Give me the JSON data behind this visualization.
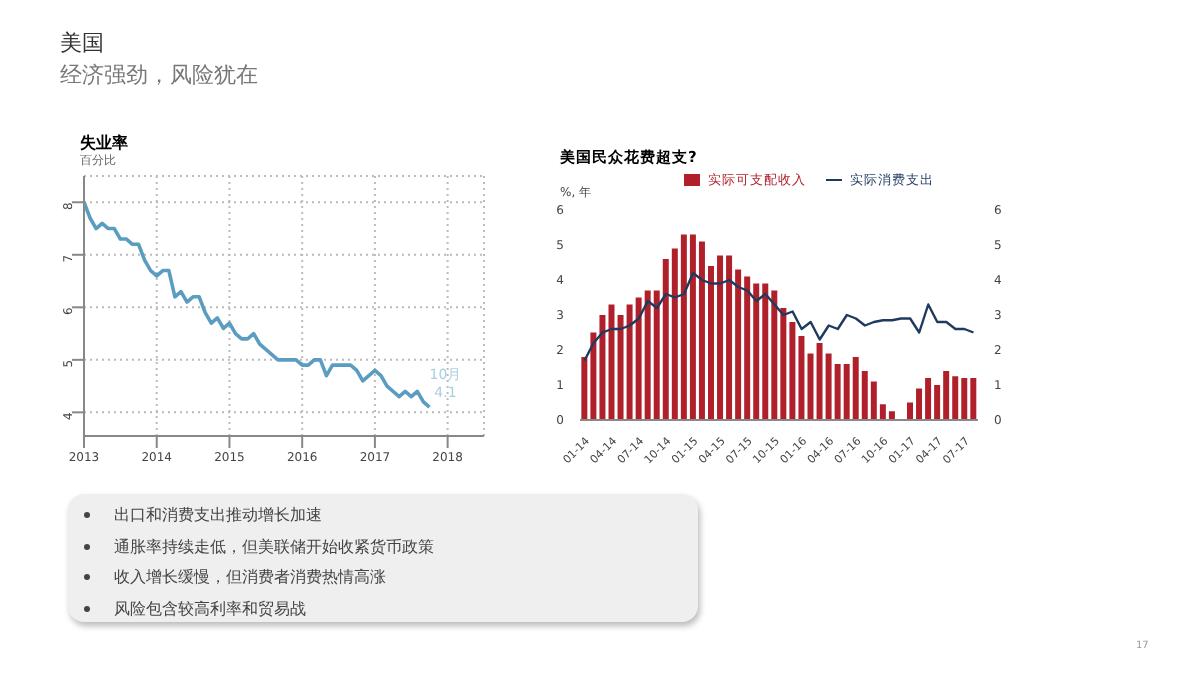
{
  "chart_data": [
    {
      "type": "other",
      "title": "美国",
      "subtitle": "经济强劲，风险犹在",
      "annotations": [
        "出口和消费支出推动增长加速",
        "通胀率持续走低，但美联储开始收紧货币政策",
        "收入增长缓慢，但消费者消费热情高涨",
        "风险包含较高利率和贸易战",
        "17"
      ]
    },
    {
      "type": "line",
      "title": "失业率",
      "ylabel": "百分比",
      "grid": true,
      "marker": "none",
      "x": [
        "2013-01",
        "2013-02",
        "2013-03",
        "2013-04",
        "2013-05",
        "2013-06",
        "2013-07",
        "2013-08",
        "2013-09",
        "2013-10",
        "2013-11",
        "2013-12",
        "2014-01",
        "2014-02",
        "2014-03",
        "2014-04",
        "2014-05",
        "2014-06",
        "2014-07",
        "2014-08",
        "2014-09",
        "2014-10",
        "2014-11",
        "2014-12",
        "2015-01",
        "2015-02",
        "2015-03",
        "2015-04",
        "2015-05",
        "2015-06",
        "2015-07",
        "2015-08",
        "2015-09",
        "2015-10",
        "2015-11",
        "2015-12",
        "2016-01",
        "2016-02",
        "2016-03",
        "2016-04",
        "2016-05",
        "2016-06",
        "2016-07",
        "2016-08",
        "2016-09",
        "2016-10",
        "2016-11",
        "2016-12",
        "2017-01",
        "2017-02",
        "2017-03",
        "2017-04",
        "2017-05",
        "2017-06",
        "2017-07",
        "2017-08",
        "2017-09",
        "2017-10"
      ],
      "series": [
        {
          "color": "#5b9dc0",
          "values": [
            8.0,
            7.7,
            7.5,
            7.6,
            7.5,
            7.5,
            7.3,
            7.3,
            7.2,
            7.2,
            6.9,
            6.7,
            6.6,
            6.7,
            6.7,
            6.2,
            6.3,
            6.1,
            6.2,
            6.2,
            5.9,
            5.7,
            5.8,
            5.6,
            5.7,
            5.5,
            5.4,
            5.4,
            5.5,
            5.3,
            5.2,
            5.1,
            5.0,
            5.0,
            5.0,
            5.0,
            4.9,
            4.9,
            5.0,
            5.0,
            4.7,
            4.9,
            4.9,
            4.9,
            4.9,
            4.8,
            4.6,
            4.7,
            4.8,
            4.7,
            4.5,
            4.4,
            4.3,
            4.4,
            4.3,
            4.4,
            4.2,
            4.1
          ]
        }
      ],
      "xlim": [
        "2013-01",
        "2018-07"
      ],
      "xticks": [
        "2013",
        "2014",
        "2015",
        "2016",
        "2017",
        "2018"
      ],
      "ylim": [
        3.55,
        8.5
      ],
      "yticks": [
        4,
        5,
        6,
        7,
        8
      ],
      "annotations": [
        {
          "text": "10月\n4.1",
          "x": "2017-10",
          "y": 4.1
        }
      ]
    },
    {
      "type": "bar",
      "title": "美国民众花费超支?",
      "ylabel": "%, 年",
      "legend": "top",
      "categories": [
        "01-14",
        null,
        null,
        "04-14",
        null,
        null,
        "07-14",
        null,
        null,
        "10-14",
        null,
        null,
        "01-15",
        null,
        null,
        "04-15",
        null,
        null,
        "07-15",
        null,
        null,
        "10-15",
        null,
        null,
        "01-16",
        null,
        null,
        "04-16",
        null,
        null,
        "07-16",
        null,
        null,
        "10-16",
        null,
        null,
        "01-17",
        null,
        null,
        "04-17",
        null,
        null,
        "07-17",
        null
      ],
      "series": [
        {
          "name": "实际可支配收入",
          "type": "bar",
          "color": "#b0202a",
          "values": [
            1.8,
            2.5,
            3.0,
            3.3,
            3.0,
            3.3,
            3.5,
            3.7,
            3.7,
            4.6,
            4.9,
            5.3,
            5.3,
            5.1,
            4.4,
            4.7,
            4.7,
            4.3,
            4.1,
            3.9,
            3.9,
            3.7,
            3.2,
            2.8,
            2.4,
            1.9,
            2.2,
            1.9,
            1.6,
            1.6,
            1.8,
            1.4,
            1.1,
            0.45,
            0.25,
            0,
            0.5,
            0.9,
            1.2,
            1.0,
            1.4,
            1.25,
            1.2,
            1.2
          ]
        },
        {
          "name": "实际消费支出",
          "type": "line",
          "color": "#1f3a5f",
          "values": [
            1.7,
            2.2,
            2.5,
            2.6,
            2.6,
            2.7,
            2.9,
            3.4,
            3.2,
            3.6,
            3.5,
            3.6,
            4.2,
            4.0,
            3.9,
            3.9,
            4.0,
            3.8,
            3.7,
            3.4,
            3.6,
            3.3,
            3.0,
            3.1,
            2.6,
            2.8,
            2.3,
            2.7,
            2.6,
            3.0,
            2.9,
            2.7,
            2.8,
            2.85,
            2.85,
            2.9,
            2.9,
            2.5,
            3.3,
            2.8,
            2.8,
            2.6,
            2.6,
            2.5
          ]
        }
      ],
      "ylim": [
        0,
        6
      ],
      "yticks": [
        0,
        1,
        2,
        3,
        4,
        5,
        6
      ],
      "y2lim": [
        0,
        6
      ],
      "y2ticks": [
        0,
        1,
        2,
        3,
        4,
        5,
        6
      ]
    }
  ]
}
